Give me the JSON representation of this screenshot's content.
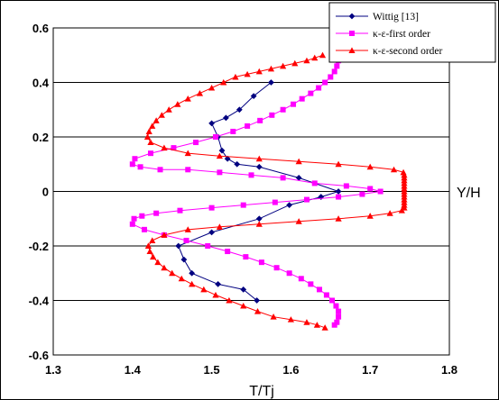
{
  "chart_data": {
    "type": "line",
    "title": "",
    "xlabel": "T/Tj",
    "ylabel": "Y/H",
    "xlim": [
      1.3,
      1.8
    ],
    "ylim": [
      -0.6,
      0.6
    ],
    "xticks": [
      "1.3",
      "1.4",
      "1.5",
      "1.6",
      "1.7",
      "1.8"
    ],
    "yticks": [
      "-0.6",
      "-0.4",
      "-0.2",
      "0",
      "0.2",
      "0.4",
      "0.6"
    ],
    "grid": "horizontal",
    "legend_position": "top-right",
    "series": [
      {
        "name": "Wittig [13]",
        "color": "#000080",
        "marker": "diamond",
        "points": [
          [
            1.575,
            0.4
          ],
          [
            1.553,
            0.35
          ],
          [
            1.535,
            0.3
          ],
          [
            1.518,
            0.27
          ],
          [
            1.5,
            0.25
          ],
          [
            1.508,
            0.2
          ],
          [
            1.513,
            0.15
          ],
          [
            1.52,
            0.12
          ],
          [
            1.532,
            0.1
          ],
          [
            1.56,
            0.09
          ],
          [
            1.61,
            0.05
          ],
          [
            1.66,
            0.0
          ],
          [
            1.638,
            -0.02
          ],
          [
            1.598,
            -0.05
          ],
          [
            1.56,
            -0.1
          ],
          [
            1.5,
            -0.15
          ],
          [
            1.458,
            -0.2
          ],
          [
            1.465,
            -0.25
          ],
          [
            1.475,
            -0.3
          ],
          [
            1.508,
            -0.34
          ],
          [
            1.54,
            -0.36
          ],
          [
            1.557,
            -0.4
          ]
        ]
      },
      {
        "name": "κ-ε-first order",
        "color": "#FF00FF",
        "marker": "square",
        "points": [
          [
            1.657,
            0.49
          ],
          [
            1.66,
            0.48
          ],
          [
            1.658,
            0.46
          ],
          [
            1.655,
            0.44
          ],
          [
            1.65,
            0.42
          ],
          [
            1.643,
            0.4
          ],
          [
            1.635,
            0.38
          ],
          [
            1.625,
            0.36
          ],
          [
            1.614,
            0.34
          ],
          [
            1.603,
            0.32
          ],
          [
            1.59,
            0.3
          ],
          [
            1.576,
            0.28
          ],
          [
            1.561,
            0.26
          ],
          [
            1.545,
            0.24
          ],
          [
            1.527,
            0.22
          ],
          [
            1.505,
            0.2
          ],
          [
            1.48,
            0.18
          ],
          [
            1.452,
            0.16
          ],
          [
            1.423,
            0.14
          ],
          [
            1.403,
            0.12
          ],
          [
            1.4,
            0.1
          ],
          [
            1.41,
            0.09
          ],
          [
            1.435,
            0.08
          ],
          [
            1.47,
            0.08
          ],
          [
            1.51,
            0.07
          ],
          [
            1.55,
            0.06
          ],
          [
            1.59,
            0.05
          ],
          [
            1.63,
            0.03
          ],
          [
            1.67,
            0.02
          ],
          [
            1.7,
            0.01
          ],
          [
            1.713,
            0.0
          ],
          [
            1.69,
            -0.01
          ],
          [
            1.66,
            -0.02
          ],
          [
            1.62,
            -0.03
          ],
          [
            1.58,
            -0.04
          ],
          [
            1.54,
            -0.05
          ],
          [
            1.5,
            -0.06
          ],
          [
            1.46,
            -0.07
          ],
          [
            1.43,
            -0.08
          ],
          [
            1.412,
            -0.09
          ],
          [
            1.402,
            -0.1
          ],
          [
            1.4,
            -0.12
          ],
          [
            1.415,
            -0.14
          ],
          [
            1.44,
            -0.16
          ],
          [
            1.468,
            -0.18
          ],
          [
            1.495,
            -0.2
          ],
          [
            1.52,
            -0.22
          ],
          [
            1.543,
            -0.24
          ],
          [
            1.563,
            -0.26
          ],
          [
            1.582,
            -0.28
          ],
          [
            1.598,
            -0.3
          ],
          [
            1.613,
            -0.32
          ],
          [
            1.625,
            -0.34
          ],
          [
            1.636,
            -0.36
          ],
          [
            1.645,
            -0.38
          ],
          [
            1.652,
            -0.4
          ],
          [
            1.657,
            -0.42
          ],
          [
            1.66,
            -0.44
          ],
          [
            1.66,
            -0.46
          ],
          [
            1.658,
            -0.48
          ],
          [
            1.655,
            -0.49
          ]
        ]
      },
      {
        "name": "κ-ε-second order",
        "color": "#FF0000",
        "marker": "triangle",
        "points": [
          [
            1.64,
            0.5
          ],
          [
            1.63,
            0.49
          ],
          [
            1.62,
            0.48
          ],
          [
            1.605,
            0.47
          ],
          [
            1.59,
            0.46
          ],
          [
            1.575,
            0.45
          ],
          [
            1.56,
            0.44
          ],
          [
            1.545,
            0.43
          ],
          [
            1.53,
            0.42
          ],
          [
            1.515,
            0.4
          ],
          [
            1.5,
            0.38
          ],
          [
            1.485,
            0.36
          ],
          [
            1.47,
            0.34
          ],
          [
            1.457,
            0.32
          ],
          [
            1.446,
            0.3
          ],
          [
            1.437,
            0.28
          ],
          [
            1.43,
            0.26
          ],
          [
            1.425,
            0.24
          ],
          [
            1.421,
            0.22
          ],
          [
            1.419,
            0.2
          ],
          [
            1.423,
            0.18
          ],
          [
            1.44,
            0.16
          ],
          [
            1.47,
            0.14
          ],
          [
            1.51,
            0.13
          ],
          [
            1.56,
            0.12
          ],
          [
            1.61,
            0.11
          ],
          [
            1.66,
            0.1
          ],
          [
            1.7,
            0.09
          ],
          [
            1.73,
            0.08
          ],
          [
            1.742,
            0.07
          ],
          [
            1.743,
            0.06
          ],
          [
            1.743,
            0.05
          ],
          [
            1.743,
            0.04
          ],
          [
            1.743,
            0.03
          ],
          [
            1.743,
            0.02
          ],
          [
            1.743,
            0.01
          ],
          [
            1.743,
            0.0
          ],
          [
            1.743,
            -0.01
          ],
          [
            1.743,
            -0.02
          ],
          [
            1.743,
            -0.03
          ],
          [
            1.743,
            -0.04
          ],
          [
            1.743,
            -0.05
          ],
          [
            1.743,
            -0.06
          ],
          [
            1.74,
            -0.07
          ],
          [
            1.725,
            -0.08
          ],
          [
            1.7,
            -0.09
          ],
          [
            1.66,
            -0.1
          ],
          [
            1.61,
            -0.11
          ],
          [
            1.56,
            -0.12
          ],
          [
            1.51,
            -0.13
          ],
          [
            1.47,
            -0.14
          ],
          [
            1.44,
            -0.16
          ],
          [
            1.425,
            -0.18
          ],
          [
            1.42,
            -0.2
          ],
          [
            1.422,
            -0.22
          ],
          [
            1.426,
            -0.24
          ],
          [
            1.432,
            -0.26
          ],
          [
            1.44,
            -0.28
          ],
          [
            1.45,
            -0.3
          ],
          [
            1.462,
            -0.32
          ],
          [
            1.475,
            -0.34
          ],
          [
            1.49,
            -0.36
          ],
          [
            1.505,
            -0.38
          ],
          [
            1.522,
            -0.4
          ],
          [
            1.54,
            -0.42
          ],
          [
            1.558,
            -0.44
          ],
          [
            1.578,
            -0.46
          ],
          [
            1.6,
            -0.47
          ],
          [
            1.62,
            -0.48
          ],
          [
            1.633,
            -0.49
          ],
          [
            1.643,
            -0.5
          ]
        ]
      }
    ]
  }
}
